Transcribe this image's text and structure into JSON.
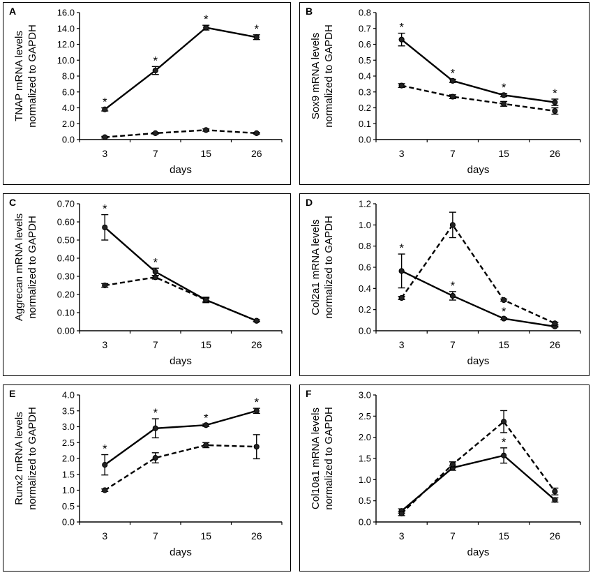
{
  "chart_data": [
    {
      "panel": "A",
      "type": "line",
      "ylabel": [
        "TNAP mRNA levels",
        "normalized to GAPDH"
      ],
      "xlabel": "days",
      "categories": [
        "3",
        "7",
        "15",
        "26"
      ],
      "ylim": [
        0,
        16
      ],
      "yticks": [
        "0.0",
        "2.0",
        "4.0",
        "6.0",
        "8.0",
        "10.0",
        "12.0",
        "14.0",
        "16.0"
      ],
      "series": [
        {
          "name": "solid",
          "style": "solid",
          "values": [
            3.8,
            8.7,
            14.1,
            12.9
          ],
          "errors": [
            0.2,
            0.5,
            0.3,
            0.3
          ]
        },
        {
          "name": "dashed",
          "style": "dashed",
          "values": [
            0.3,
            0.8,
            1.2,
            0.8
          ],
          "errors": [
            0.1,
            0.1,
            0.15,
            0.1
          ]
        }
      ],
      "significance": [
        "*",
        "*",
        "*",
        "*"
      ]
    },
    {
      "panel": "B",
      "type": "line",
      "ylabel": [
        "Sox9 mRNA levels",
        "normalized to GAPDH"
      ],
      "xlabel": "days",
      "categories": [
        "3",
        "7",
        "15",
        "26"
      ],
      "ylim": [
        0,
        0.8
      ],
      "yticks": [
        "0.0",
        "0.1",
        "0.2",
        "0.3",
        "0.4",
        "0.5",
        "0.6",
        "0.7",
        "0.8"
      ],
      "series": [
        {
          "name": "solid",
          "style": "solid",
          "values": [
            0.63,
            0.37,
            0.28,
            0.235
          ],
          "errors": [
            0.04,
            0.01,
            0.01,
            0.02
          ]
        },
        {
          "name": "dashed",
          "style": "dashed",
          "values": [
            0.34,
            0.27,
            0.225,
            0.18
          ],
          "errors": [
            0.012,
            0.012,
            0.015,
            0.02
          ]
        }
      ],
      "significance": [
        "*",
        "*",
        "*",
        "*"
      ]
    },
    {
      "panel": "C",
      "type": "line",
      "ylabel": [
        "Aggrecan mRNA levels",
        "normalized to GAPDH"
      ],
      "xlabel": "days",
      "categories": [
        "3",
        "7",
        "15",
        "26"
      ],
      "ylim": [
        0,
        0.7
      ],
      "yticks": [
        "0.00",
        "0.10",
        "0.20",
        "0.30",
        "0.40",
        "0.50",
        "0.60",
        "0.70"
      ],
      "series": [
        {
          "name": "solid",
          "style": "solid",
          "values": [
            0.57,
            0.325,
            0.17,
            0.055
          ],
          "errors": [
            0.07,
            0.02,
            0.015,
            0.005
          ]
        },
        {
          "name": "dashed",
          "style": "dashed",
          "values": [
            0.25,
            0.295,
            0.17,
            0.055
          ],
          "errors": [
            0.01,
            0.01,
            0.01,
            0.005
          ]
        }
      ],
      "significance": [
        "*",
        "*",
        "",
        ""
      ]
    },
    {
      "panel": "D",
      "type": "line",
      "ylabel": [
        "Col2a1 mRNA levels",
        "normalized to GAPDH"
      ],
      "xlabel": "days",
      "categories": [
        "3",
        "7",
        "15",
        "26"
      ],
      "ylim": [
        0,
        1.2
      ],
      "yticks": [
        "0.0",
        "0.2",
        "0.4",
        "0.6",
        "0.8",
        "1.0",
        "1.2"
      ],
      "series": [
        {
          "name": "solid",
          "style": "solid",
          "values": [
            0.565,
            0.33,
            0.115,
            0.04
          ],
          "errors": [
            0.16,
            0.04,
            0.01,
            0.005
          ]
        },
        {
          "name": "dashed",
          "style": "dashed",
          "values": [
            0.31,
            1.0,
            0.29,
            0.07
          ],
          "errors": [
            0.015,
            0.12,
            0.01,
            0.01
          ]
        }
      ],
      "significance": [
        "*",
        "*",
        "*",
        ""
      ]
    },
    {
      "panel": "E",
      "type": "line",
      "ylabel": [
        "Runx2 mRNA levels",
        "normalized to GAPDH"
      ],
      "xlabel": "days",
      "categories": [
        "3",
        "7",
        "15",
        "26"
      ],
      "ylim": [
        0,
        4
      ],
      "yticks": [
        "0.0",
        "0.5",
        "1.0",
        "1.5",
        "2.0",
        "2.5",
        "3.0",
        "3.5",
        "4.0"
      ],
      "series": [
        {
          "name": "solid",
          "style": "solid",
          "values": [
            1.8,
            2.95,
            3.05,
            3.5
          ],
          "errors": [
            0.32,
            0.3,
            0.04,
            0.08
          ]
        },
        {
          "name": "dashed",
          "style": "dashed",
          "values": [
            1.0,
            2.02,
            2.42,
            2.37
          ],
          "errors": [
            0.04,
            0.16,
            0.08,
            0.38
          ]
        }
      ],
      "significance": [
        "*",
        "*",
        "*",
        "*"
      ]
    },
    {
      "panel": "F",
      "type": "line",
      "ylabel": [
        "Col10a1 mRNA levels",
        "normalized to GAPDH"
      ],
      "xlabel": "days",
      "categories": [
        "3",
        "7",
        "15",
        "26"
      ],
      "ylim": [
        0,
        3
      ],
      "yticks": [
        "0.0",
        "0.5",
        "1.0",
        "1.5",
        "2.0",
        "2.5",
        "3.0"
      ],
      "series": [
        {
          "name": "solid",
          "style": "solid",
          "values": [
            0.26,
            1.28,
            1.57,
            0.52
          ],
          "errors": [
            0.05,
            0.06,
            0.18,
            0.05
          ]
        },
        {
          "name": "dashed",
          "style": "dashed",
          "values": [
            0.2,
            1.36,
            2.37,
            0.72
          ],
          "errors": [
            0.05,
            0.06,
            0.26,
            0.08
          ]
        }
      ],
      "significance": [
        "",
        "",
        "*",
        ""
      ]
    }
  ]
}
